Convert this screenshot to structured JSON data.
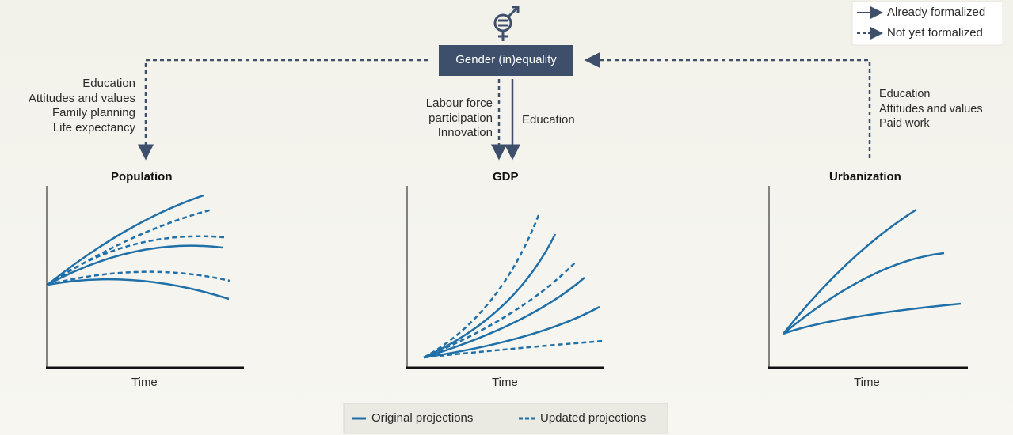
{
  "center": {
    "label": "Gender (in)equality",
    "icon": "gender-equality-icon"
  },
  "legend_top": {
    "solid": "Already formalized",
    "dashed": "Not yet formalized"
  },
  "left_arrow_labels": [
    "Education",
    "Attitudes and values",
    "Family planning",
    "Life expectancy"
  ],
  "middle_dashed_labels": [
    "Labour force",
    "participation",
    "Innovation"
  ],
  "middle_solid_label": "Education",
  "right_arrow_labels": [
    "Education",
    "Attitudes and values",
    "Paid work"
  ],
  "charts": [
    {
      "title": "Population",
      "xlabel": "Time"
    },
    {
      "title": "GDP",
      "xlabel": "Time"
    },
    {
      "title": "Urbanization",
      "xlabel": "Time"
    }
  ],
  "legend_bottom": {
    "solid": "Original projections",
    "dashed": "Updated projections"
  },
  "colors": {
    "navy": "#3d4f6b",
    "line_blue": "#1f6fa8"
  }
}
